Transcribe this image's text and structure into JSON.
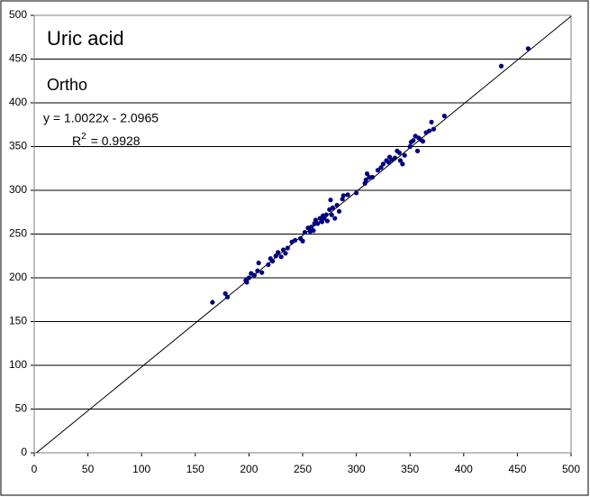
{
  "chart_data": {
    "type": "scatter",
    "title": "Uric acid",
    "subtitle": "Ortho",
    "equation": "y = 1.0022x - 2.0965",
    "r2_prefix": "R",
    "r2_sup": "2",
    "r2_value": "= 0.9928",
    "trendline": {
      "slope": 1.0022,
      "intercept": -2.0965
    },
    "color": "#000080",
    "grid": true,
    "xlim": [
      0,
      500
    ],
    "ylim": [
      0,
      500
    ],
    "xticks": [
      0,
      50,
      100,
      150,
      200,
      250,
      300,
      350,
      400,
      450,
      500
    ],
    "yticks": [
      0,
      50,
      100,
      150,
      200,
      250,
      300,
      350,
      400,
      450,
      500
    ],
    "x": [
      166,
      178,
      180,
      197,
      198,
      200,
      202,
      205,
      208,
      209,
      212,
      218,
      220,
      222,
      225,
      227,
      230,
      232,
      234,
      236,
      240,
      243,
      248,
      250,
      252,
      255,
      257,
      258,
      260,
      261,
      262,
      264,
      266,
      268,
      269,
      270,
      272,
      273,
      275,
      276,
      277,
      278,
      280,
      282,
      284,
      287,
      288,
      292,
      300,
      308,
      309,
      310,
      312,
      315,
      320,
      323,
      325,
      328,
      330,
      331,
      333,
      336,
      338,
      340,
      341,
      343,
      345,
      350,
      351,
      353,
      355,
      357,
      358,
      360,
      362,
      365,
      368,
      370,
      372,
      382,
      435,
      460
    ],
    "values": [
      172,
      182,
      178,
      197,
      195,
      200,
      205,
      203,
      208,
      217,
      206,
      215,
      222,
      219,
      225,
      229,
      224,
      232,
      228,
      234,
      241,
      243,
      245,
      242,
      252,
      257,
      253,
      258,
      254,
      262,
      266,
      262,
      268,
      264,
      271,
      268,
      272,
      265,
      278,
      289,
      272,
      280,
      268,
      283,
      276,
      290,
      294,
      295,
      297,
      308,
      312,
      319,
      315,
      315,
      323,
      326,
      330,
      334,
      332,
      338,
      335,
      337,
      345,
      343,
      334,
      330,
      340,
      350,
      355,
      357,
      362,
      345,
      360,
      358,
      356,
      366,
      368,
      378,
      370,
      385,
      442,
      462
    ]
  }
}
